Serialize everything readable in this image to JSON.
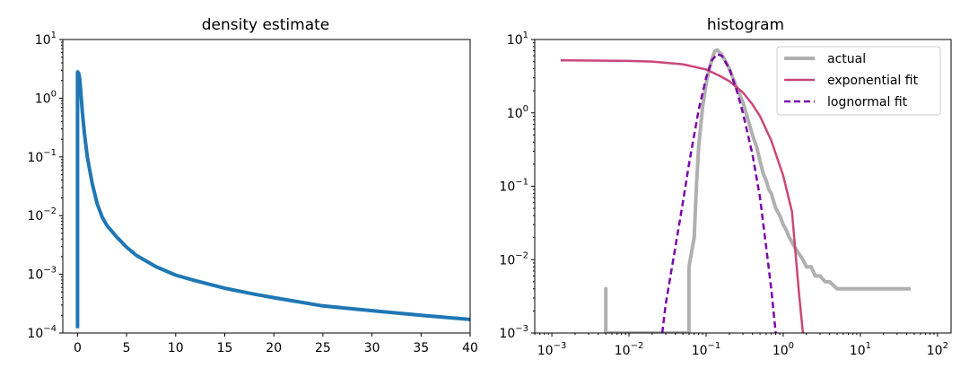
{
  "chart_data": [
    {
      "type": "line",
      "title": "density estimate",
      "xlabel": "",
      "ylabel": "",
      "xscale": "linear",
      "yscale": "log",
      "xlim": [
        -1.5,
        40
      ],
      "ylim": [
        0.0001,
        10
      ],
      "x_ticks": [
        0,
        5,
        10,
        15,
        20,
        25,
        30,
        35,
        40
      ],
      "x_tick_labels": [
        "0",
        "5",
        "10",
        "15",
        "20",
        "25",
        "30",
        "35",
        "40"
      ],
      "y_ticks": [
        0.0001,
        0.001,
        0.01,
        0.1,
        1,
        10
      ],
      "y_tick_labels": [
        [
          "10",
          "−4"
        ],
        [
          "10",
          "−3"
        ],
        [
          "10",
          "−2"
        ],
        [
          "10",
          "−1"
        ],
        [
          "10",
          "0"
        ],
        [
          "10",
          "1"
        ]
      ],
      "color": "#1f77b4",
      "series": [
        {
          "x": [
            0.0,
            0.0,
            0.02,
            0.05,
            0.1,
            0.2,
            0.3,
            0.5,
            0.7,
            1.0,
            1.5,
            2.0,
            2.5,
            3.0,
            4.0,
            5.0,
            6.0,
            8.0,
            10.0,
            12.0,
            15.0,
            18.0,
            20.0,
            25.0,
            30.0,
            35.0,
            40.0
          ],
          "y": [
            0.00012,
            2.7,
            2.8,
            2.7,
            2.7,
            2.3,
            1.5,
            0.55,
            0.25,
            0.1,
            0.035,
            0.016,
            0.0095,
            0.0068,
            0.0043,
            0.0029,
            0.0021,
            0.00135,
            0.00097,
            0.00078,
            0.00058,
            0.00046,
            0.0004,
            0.00029,
            0.00024,
            0.0002,
            0.00017
          ]
        }
      ]
    },
    {
      "type": "line",
      "title": "histogram",
      "xlabel": "",
      "ylabel": "",
      "xscale": "log",
      "yscale": "log",
      "xlim": [
        0.0006,
        150
      ],
      "ylim": [
        0.001,
        10
      ],
      "x_ticks": [
        0.001,
        0.01,
        0.1,
        1,
        10,
        100
      ],
      "x_tick_labels": [
        [
          "10",
          "−3"
        ],
        [
          "10",
          "−2"
        ],
        [
          "10",
          "−1"
        ],
        [
          "10",
          "0"
        ],
        [
          "10",
          "1"
        ],
        [
          "10",
          "2"
        ]
      ],
      "y_ticks": [
        0.001,
        0.01,
        0.1,
        1,
        10
      ],
      "y_tick_labels": [
        [
          "10",
          "−3"
        ],
        [
          "10",
          "−2"
        ],
        [
          "10",
          "−1"
        ],
        [
          "10",
          "0"
        ],
        [
          "10",
          "1"
        ]
      ],
      "legend": {
        "placement": "upper right",
        "entries": [
          "actual",
          "exponential fit",
          "lognormal fit"
        ]
      },
      "series": [
        {
          "name": "actual",
          "color": "#b0b0b0",
          "style": "solid",
          "x": [
            0.005,
            0.005,
            0.005,
            0.005,
            0.06,
            0.06,
            0.07,
            0.075,
            0.08,
            0.09,
            0.1,
            0.11,
            0.12,
            0.13,
            0.14,
            0.16,
            0.18,
            0.2,
            0.25,
            0.3,
            0.35,
            0.4,
            0.45,
            0.5,
            0.55,
            0.6,
            0.65,
            0.7,
            0.8,
            0.9,
            1.0,
            1.1,
            1.2,
            1.4,
            1.6,
            1.8,
            2.0,
            2.3,
            2.6,
            3.0,
            3.5,
            4.0,
            5.0,
            6.0,
            7.0,
            8.0,
            9.0,
            10.0,
            12.0,
            14.0,
            16.0,
            20.0,
            25.0,
            30.0,
            35.0,
            40.0,
            45.0
          ],
          "y": [
            0.001,
            0.004,
            0.004,
            0.001,
            0.001,
            0.008,
            0.02,
            0.1,
            0.35,
            1.2,
            2.5,
            4.0,
            5.5,
            7.0,
            7.2,
            6.2,
            5.0,
            4.0,
            2.2,
            1.4,
            0.8,
            0.5,
            0.35,
            0.22,
            0.15,
            0.12,
            0.09,
            0.08,
            0.05,
            0.04,
            0.03,
            0.025,
            0.02,
            0.015,
            0.012,
            0.01,
            0.008,
            0.008,
            0.006,
            0.006,
            0.005,
            0.005,
            0.004,
            0.004,
            0.004,
            0.004,
            0.004,
            0.004,
            0.004,
            0.004,
            0.004,
            0.004,
            0.004,
            0.004,
            0.004,
            0.004,
            0.004
          ]
        },
        {
          "name": "exponential fit",
          "color": "#c9487a",
          "style": "solid",
          "x": [
            0.0013,
            0.005,
            0.01,
            0.02,
            0.05,
            0.1,
            0.15,
            0.2,
            0.3,
            0.4,
            0.5,
            0.7,
            1.0,
            1.3,
            1.6,
            1.8
          ],
          "y": [
            5.2,
            5.15,
            5.1,
            5.0,
            4.6,
            3.9,
            3.2,
            2.7,
            1.9,
            1.3,
            0.9,
            0.42,
            0.14,
            0.045,
            0.0035,
            0.001
          ]
        },
        {
          "name": "lognormal fit",
          "color": "#7b05a8",
          "style": "dashed",
          "x": [
            0.027,
            0.03,
            0.04,
            0.05,
            0.06,
            0.07,
            0.08,
            0.1,
            0.12,
            0.14,
            0.16,
            0.2,
            0.25,
            0.3,
            0.4,
            0.5,
            0.6,
            0.7,
            0.8
          ],
          "y": [
            0.001,
            0.0025,
            0.015,
            0.06,
            0.2,
            0.5,
            1.1,
            3.0,
            5.3,
            6.3,
            6.0,
            4.0,
            2.0,
            1.0,
            0.27,
            0.07,
            0.015,
            0.004,
            0.001
          ]
        }
      ]
    }
  ]
}
